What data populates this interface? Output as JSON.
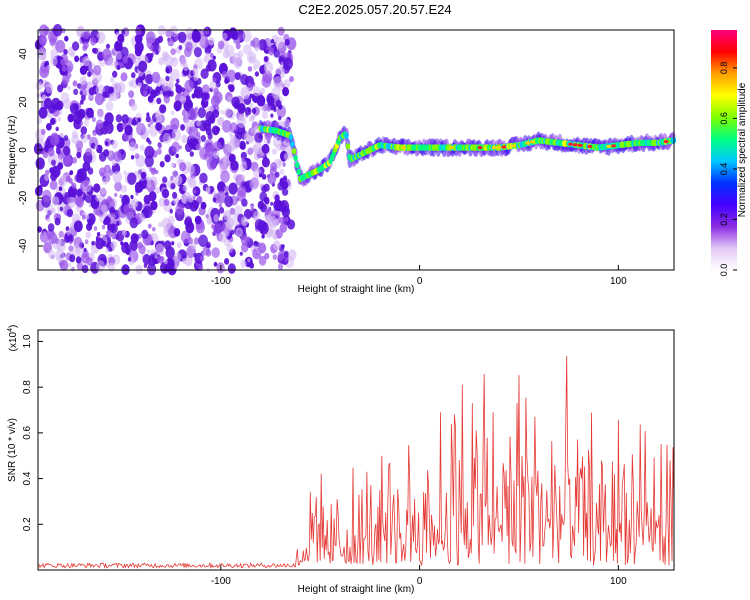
{
  "title": "C2E2.2025.057.20.57.E24",
  "chart_data": [
    {
      "type": "heatmap",
      "xlabel": "Height of straight line (km)",
      "ylabel": "Frequency (Hz)",
      "xlim": [
        -192,
        128
      ],
      "ylim": [
        -50,
        50
      ],
      "xticks": [
        -100,
        0,
        100
      ],
      "yticks": [
        -40,
        -20,
        0,
        20,
        40
      ],
      "grid": false,
      "colorbar": {
        "label": "Normalized spectral amplitude",
        "range": [
          0,
          0.95
        ],
        "ticks": [
          0.0,
          0.2,
          0.4,
          0.6,
          0.8
        ],
        "tick_labels": [
          "0.0",
          "0.2",
          "0.4",
          "0.6",
          "0.8"
        ],
        "colormap": [
          "#ffffff",
          "#e2c8f4",
          "#8a2be2",
          "#4400ff",
          "#0033ff",
          "#00c8ff",
          "#00ff80",
          "#80ff00",
          "#ffff00",
          "#ffa000",
          "#ff0000",
          "#ff0080"
        ]
      },
      "noise_region_x": [
        -192,
        -64
      ],
      "noise_color": "#7b2fe0",
      "ridge": {
        "x": [
          -80,
          -72,
          -65,
          -60,
          -55,
          -50,
          -45,
          -40,
          -37,
          -35,
          -30,
          -20,
          -10,
          0,
          10,
          20,
          30,
          40,
          50,
          60,
          70,
          80,
          90,
          100,
          110,
          120,
          128
        ],
        "y": [
          9,
          8,
          6,
          -12,
          -10,
          -8,
          -5,
          5,
          7,
          -4,
          -2,
          2,
          1,
          1,
          1,
          1,
          1,
          1,
          2,
          4,
          3,
          2,
          1,
          2,
          3,
          3,
          4
        ]
      }
    },
    {
      "type": "line",
      "xlabel": "Height of straight line (km)",
      "ylabel": "SNR (10 * v/v)",
      "y_multiplier_label": "(x10",
      "y_multiplier_exp": "4",
      "y_multiplier_close": ")",
      "xlim": [
        -192,
        128
      ],
      "ylim": [
        0,
        1.05
      ],
      "xticks": [
        -100,
        0,
        100
      ],
      "yticks": [
        0.2,
        0.4,
        0.6,
        0.8,
        1.0
      ],
      "grid": false,
      "series": [
        {
          "color": "#e53935",
          "envelope_x": [
            -192,
            -130,
            -70,
            -62,
            -55,
            -50,
            -40,
            -30,
            -20,
            -10,
            0,
            10,
            20,
            30,
            40,
            50,
            55,
            60,
            70,
            80,
            90,
            100,
            110,
            120,
            128
          ],
          "envelope_y": [
            0.02,
            0.02,
            0.02,
            0.08,
            0.35,
            0.45,
            0.35,
            0.45,
            0.5,
            0.6,
            0.7,
            0.8,
            0.9,
            1.0,
            0.9,
            0.95,
            1.05,
            0.9,
            0.85,
            0.75,
            0.7,
            0.75,
            0.65,
            0.65,
            0.6
          ]
        }
      ]
    }
  ]
}
